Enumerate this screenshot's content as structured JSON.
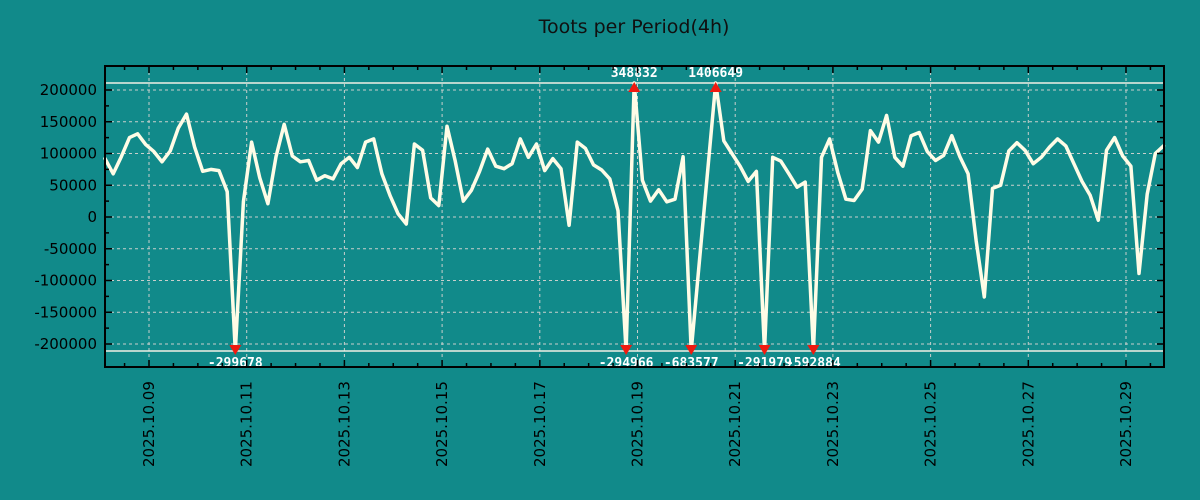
{
  "chart_data": {
    "type": "line",
    "title": "Toots per Period(4h)",
    "xlabel": "",
    "ylabel": "",
    "grid": true,
    "legend": "none",
    "period_hours": 4,
    "ylim": [
      -211000,
      211000
    ],
    "y_ticks": [
      200000,
      150000,
      100000,
      50000,
      0,
      -50000,
      -100000,
      -150000,
      -200000
    ],
    "x_ticks": [
      {
        "day": 9,
        "label": "2025.10.09"
      },
      {
        "day": 11,
        "label": "2025.10.11"
      },
      {
        "day": 13,
        "label": "2025.10.13"
      },
      {
        "day": 15,
        "label": "2025.10.15"
      },
      {
        "day": 17,
        "label": "2025.10.17"
      },
      {
        "day": 19,
        "label": "2025.10.19"
      },
      {
        "day": 21,
        "label": "2025.10.21"
      },
      {
        "day": 23,
        "label": "2025.10.23"
      },
      {
        "day": 25,
        "label": "2025.10.25"
      },
      {
        "day": 27,
        "label": "2025.10.27"
      },
      {
        "day": 29,
        "label": "2025.10.29"
      }
    ],
    "clip_lines": [
      211000,
      -211000
    ],
    "series": [
      {
        "name": "toots-per-4h",
        "points": [
          [
            8.1,
            92000
          ],
          [
            8.267,
            68000
          ],
          [
            8.433,
            95000
          ],
          [
            8.6,
            125000
          ],
          [
            8.767,
            131000
          ],
          [
            8.933,
            114000
          ],
          [
            9.1,
            103000
          ],
          [
            9.267,
            87000
          ],
          [
            9.433,
            104000
          ],
          [
            9.6,
            140000
          ],
          [
            9.767,
            162000
          ],
          [
            9.933,
            110000
          ],
          [
            10.1,
            72000
          ],
          [
            10.267,
            75000
          ],
          [
            10.433,
            73000
          ],
          [
            10.6,
            40000
          ],
          [
            10.767,
            -299678
          ],
          [
            10.933,
            24000
          ],
          [
            11.1,
            118000
          ],
          [
            11.267,
            62000
          ],
          [
            11.433,
            21000
          ],
          [
            11.6,
            95000
          ],
          [
            11.767,
            146000
          ],
          [
            11.933,
            96000
          ],
          [
            12.1,
            87000
          ],
          [
            12.267,
            89000
          ],
          [
            12.433,
            58000
          ],
          [
            12.6,
            65000
          ],
          [
            12.767,
            60000
          ],
          [
            12.933,
            84000
          ],
          [
            13.1,
            94000
          ],
          [
            13.267,
            78000
          ],
          [
            13.433,
            118000
          ],
          [
            13.6,
            123000
          ],
          [
            13.767,
            68000
          ],
          [
            13.933,
            34000
          ],
          [
            14.1,
            5000
          ],
          [
            14.267,
            -11000
          ],
          [
            14.433,
            115000
          ],
          [
            14.6,
            105000
          ],
          [
            14.767,
            30000
          ],
          [
            14.933,
            18000
          ],
          [
            15.1,
            143000
          ],
          [
            15.267,
            89000
          ],
          [
            15.433,
            25000
          ],
          [
            15.6,
            42000
          ],
          [
            15.767,
            72000
          ],
          [
            15.933,
            107000
          ],
          [
            16.1,
            80000
          ],
          [
            16.267,
            76000
          ],
          [
            16.433,
            84000
          ],
          [
            16.6,
            123000
          ],
          [
            16.767,
            94000
          ],
          [
            16.933,
            115000
          ],
          [
            17.1,
            73000
          ],
          [
            17.267,
            92000
          ],
          [
            17.433,
            76000
          ],
          [
            17.6,
            -13000
          ],
          [
            17.767,
            118000
          ],
          [
            17.933,
            108000
          ],
          [
            18.1,
            82000
          ],
          [
            18.267,
            74000
          ],
          [
            18.433,
            60000
          ],
          [
            18.6,
            10000
          ],
          [
            18.767,
            -294966
          ],
          [
            18.933,
            348832
          ],
          [
            19.1,
            58000
          ],
          [
            19.267,
            25000
          ],
          [
            19.433,
            43000
          ],
          [
            19.6,
            24000
          ],
          [
            19.767,
            28000
          ],
          [
            19.933,
            95000
          ],
          [
            20.1,
            -683577
          ],
          [
            20.6,
            1406649
          ],
          [
            20.767,
            120000
          ],
          [
            20.933,
            100000
          ],
          [
            21.1,
            80000
          ],
          [
            21.267,
            56000
          ],
          [
            21.433,
            72000
          ],
          [
            21.6,
            -291979
          ],
          [
            21.767,
            94000
          ],
          [
            21.933,
            88000
          ],
          [
            22.1,
            68000
          ],
          [
            22.267,
            47000
          ],
          [
            22.433,
            55000
          ],
          [
            22.6,
            -592884
          ],
          [
            22.767,
            94000
          ],
          [
            22.933,
            123000
          ],
          [
            23.1,
            70000
          ],
          [
            23.267,
            28000
          ],
          [
            23.433,
            26000
          ],
          [
            23.6,
            44000
          ],
          [
            23.767,
            136000
          ],
          [
            23.933,
            118000
          ],
          [
            24.1,
            160000
          ],
          [
            24.267,
            94000
          ],
          [
            24.433,
            80000
          ],
          [
            24.6,
            128000
          ],
          [
            24.767,
            133000
          ],
          [
            24.933,
            103000
          ],
          [
            25.1,
            89000
          ],
          [
            25.267,
            97000
          ],
          [
            25.433,
            128000
          ],
          [
            25.6,
            95000
          ],
          [
            25.767,
            68000
          ],
          [
            25.933,
            -38000
          ],
          [
            26.1,
            -126000
          ],
          [
            26.267,
            45000
          ],
          [
            26.433,
            50000
          ],
          [
            26.6,
            104000
          ],
          [
            26.767,
            117000
          ],
          [
            26.933,
            105000
          ],
          [
            27.1,
            84000
          ],
          [
            27.267,
            94000
          ],
          [
            27.433,
            110000
          ],
          [
            27.6,
            123000
          ],
          [
            27.767,
            112000
          ],
          [
            27.933,
            84000
          ],
          [
            28.1,
            56000
          ],
          [
            28.267,
            34000
          ],
          [
            28.433,
            -5000
          ],
          [
            28.6,
            105000
          ],
          [
            28.767,
            125000
          ],
          [
            28.933,
            96000
          ],
          [
            29.1,
            80000
          ],
          [
            29.267,
            -89000
          ],
          [
            29.433,
            36000
          ],
          [
            29.6,
            100000
          ],
          [
            29.767,
            112000
          ]
        ]
      }
    ],
    "annotations": [
      {
        "day": 10.767,
        "value": -299678,
        "label": "-299678",
        "dir": "down"
      },
      {
        "day": 18.767,
        "value": -294966,
        "label": "-294966",
        "dir": "down"
      },
      {
        "day": 18.933,
        "value": 348832,
        "label": "348832",
        "dir": "up"
      },
      {
        "day": 20.1,
        "value": -683577,
        "label": "-683577",
        "dir": "down"
      },
      {
        "day": 20.6,
        "value": 1406649,
        "label": "1406649",
        "dir": "up"
      },
      {
        "day": 21.6,
        "value": -291979,
        "label": "-291979",
        "dir": "down"
      },
      {
        "day": 22.6,
        "value": -592884,
        "label": "-592884",
        "dir": "down"
      }
    ],
    "colors": {
      "background": "#118a8a",
      "line": "#fffce6",
      "grid": "#c9cfcc",
      "marker": "#ee1b10",
      "axis_text": "#000000",
      "title_text": "#101010",
      "clip_line": "#f0f0e4",
      "annotation_text": "#ffffff",
      "border": "#000000"
    }
  }
}
